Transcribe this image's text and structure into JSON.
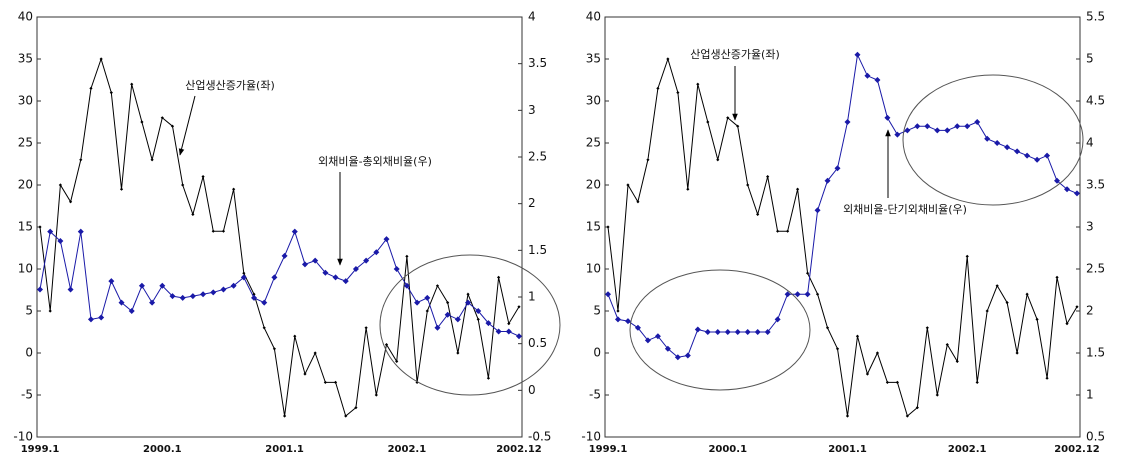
{
  "chart_data": [
    {
      "type": "line",
      "categories": [
        "1999.1",
        null,
        null,
        null,
        null,
        null,
        null,
        null,
        null,
        null,
        null,
        null,
        "2000.1",
        null,
        null,
        null,
        null,
        null,
        null,
        null,
        null,
        null,
        null,
        null,
        "2001.1",
        null,
        null,
        null,
        null,
        null,
        null,
        null,
        null,
        null,
        null,
        null,
        "2002.1",
        null,
        null,
        null,
        null,
        null,
        null,
        null,
        null,
        null,
        null,
        "2002.12"
      ],
      "series": [
        {
          "name": "산업생산증가율(좌)",
          "color": "#000000",
          "axis": "y",
          "values": [
            15,
            5,
            20,
            18,
            23,
            31.5,
            35,
            31,
            19.5,
            32,
            27.5,
            23,
            28,
            27,
            20,
            16.5,
            21,
            14.5,
            14.5,
            19.5,
            9.5,
            7,
            3,
            0.5,
            -7.5,
            2,
            -2.5,
            0,
            -3.5,
            -3.5,
            -7.5,
            -6.5,
            3,
            -5,
            1,
            -1,
            11.5,
            -3.5,
            5,
            8,
            6,
            0,
            7,
            4,
            -3,
            9,
            3.5,
            5.5
          ]
        },
        {
          "name": "외채비율-총외채비율(우)",
          "color": "#1a1aa8",
          "axis": "y2",
          "values": [
            1.08,
            1.7,
            1.6,
            1.08,
            1.7,
            0.76,
            0.78,
            1.17,
            0.94,
            0.85,
            1.12,
            0.94,
            1.12,
            1.01,
            0.99,
            1.01,
            1.03,
            1.05,
            1.08,
            1.12,
            1.21,
            0.99,
            0.94,
            1.21,
            1.44,
            1.7,
            1.35,
            1.39,
            1.26,
            1.21,
            1.17,
            1.3,
            1.39,
            1.48,
            1.62,
            1.3,
            1.12,
            0.94,
            0.99,
            0.67,
            0.81,
            0.76,
            0.94,
            0.85,
            0.72,
            0.63,
            0.63,
            0.58
          ]
        }
      ],
      "ylim": [
        -10,
        40
      ],
      "yticks": [
        -10,
        -5,
        0,
        5,
        10,
        15,
        20,
        25,
        30,
        35,
        40
      ],
      "y2lim": [
        -0.5,
        4
      ],
      "y2ticks": [
        -0.5,
        0,
        0.5,
        1,
        1.5,
        2,
        2.5,
        3,
        3.5,
        4
      ],
      "grid": false
    },
    {
      "type": "line",
      "categories": [
        "1999.1",
        null,
        null,
        null,
        null,
        null,
        null,
        null,
        null,
        null,
        null,
        null,
        "2000.1",
        null,
        null,
        null,
        null,
        null,
        null,
        null,
        null,
        null,
        null,
        null,
        "2001.1",
        null,
        null,
        null,
        null,
        null,
        null,
        null,
        null,
        null,
        null,
        null,
        "2002.1",
        null,
        null,
        null,
        null,
        null,
        null,
        null,
        null,
        null,
        null,
        "2002.12"
      ],
      "series": [
        {
          "name": "산업생산증가율(좌)",
          "color": "#000000",
          "axis": "y",
          "values": [
            15,
            5,
            20,
            18,
            23,
            31.5,
            35,
            31,
            19.5,
            32,
            27.5,
            23,
            28,
            27,
            20,
            16.5,
            21,
            14.5,
            14.5,
            19.5,
            9.5,
            7,
            3,
            0.5,
            -7.5,
            2,
            -2.5,
            0,
            -3.5,
            -3.5,
            -7.5,
            -6.5,
            3,
            -5,
            1,
            -1,
            11.5,
            -3.5,
            5,
            8,
            6,
            0,
            7,
            4,
            -3,
            9,
            3.5,
            5.5
          ]
        },
        {
          "name": "외채비율-단기외채비율(우)",
          "color": "#1a1aa8",
          "axis": "y2",
          "values": [
            2.2,
            1.9,
            1.88,
            1.8,
            1.65,
            1.7,
            1.55,
            1.45,
            1.47,
            1.78,
            1.75,
            1.75,
            1.75,
            1.75,
            1.75,
            1.75,
            1.75,
            1.9,
            2.2,
            2.2,
            2.2,
            3.2,
            3.55,
            3.7,
            4.25,
            5.05,
            4.8,
            4.75,
            4.3,
            4.1,
            4.15,
            4.2,
            4.2,
            4.15,
            4.15,
            4.2,
            4.2,
            4.25,
            4.05,
            4,
            3.95,
            3.9,
            3.85,
            3.8,
            3.85,
            3.55,
            3.45,
            3.4
          ]
        }
      ],
      "ylim": [
        -10,
        40
      ],
      "yticks": [
        -10,
        -5,
        0,
        5,
        10,
        15,
        20,
        25,
        30,
        35,
        40
      ],
      "y2lim": [
        0.5,
        5.5
      ],
      "y2ticks": [
        0.5,
        1,
        1.5,
        2,
        2.5,
        3,
        3.5,
        4,
        4.5,
        5,
        5.5
      ],
      "grid": false
    }
  ]
}
